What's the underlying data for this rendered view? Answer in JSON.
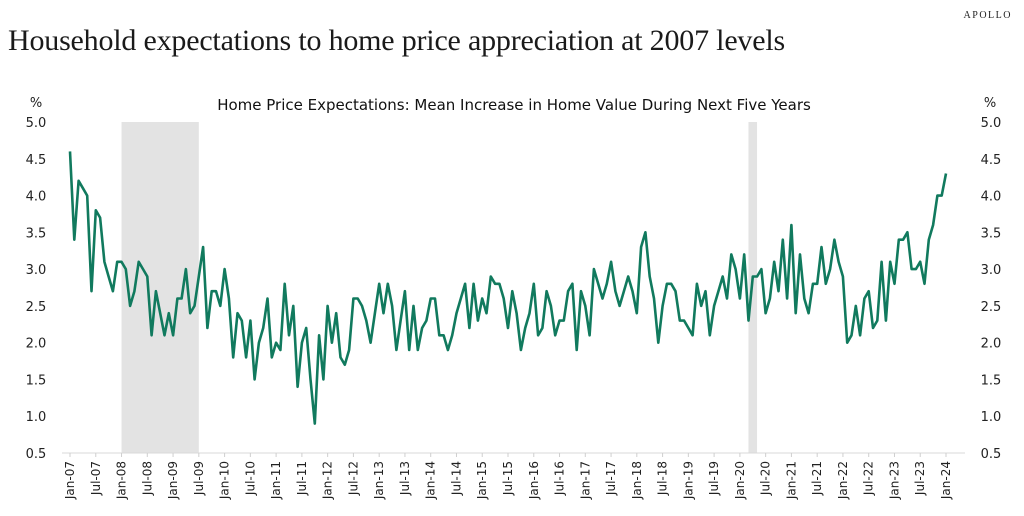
{
  "headline": "Household expectations to home price appreciation at 2007 levels",
  "brand": "APOLLO",
  "chart_data": {
    "type": "line",
    "title": "Home Price Expectations: Mean Increase in Home Value During Next Five Years",
    "ylabel_left": "%",
    "ylabel_right": "%",
    "xlabel": "",
    "ylim": [
      0.5,
      5.0
    ],
    "yticks": [
      "5.0",
      "4.5",
      "4.0",
      "3.5",
      "3.0",
      "2.5",
      "2.0",
      "1.5",
      "1.0",
      "0.5"
    ],
    "ytick_values": [
      5.0,
      4.5,
      4.0,
      3.5,
      3.0,
      2.5,
      2.0,
      1.5,
      1.0,
      0.5
    ],
    "x_start": "Jan-07",
    "x_frequency": "monthly",
    "xticks": [
      "Jan-07",
      "Jul-07",
      "Jan-08",
      "Jul-08",
      "Jan-09",
      "Jul-09",
      "Jan-10",
      "Jul-10",
      "Jan-11",
      "Jul-11",
      "Jan-12",
      "Jul-12",
      "Jan-13",
      "Jul-13",
      "Jan-14",
      "Jul-14",
      "Jan-15",
      "Jul-15",
      "Jan-16",
      "Jul-16",
      "Jan-17",
      "Jul-17",
      "Jan-18",
      "Jul-18",
      "Jan-19",
      "Jul-19",
      "Jan-20",
      "Jul-20",
      "Jan-21",
      "Jul-21",
      "Jan-22",
      "Jul-22",
      "Jan-23",
      "Jul-23",
      "Jan-24"
    ],
    "shaded_periods": [
      {
        "label": "recession",
        "start_month_index": 12,
        "end_month_index": 30
      },
      {
        "label": "recession",
        "start_month_index": 158,
        "end_month_index": 160
      }
    ],
    "grid": false,
    "legend": "none",
    "series": [
      {
        "name": "Mean expected increase in home value, next 5 years",
        "color": "#117a5e",
        "values": [
          4.6,
          3.4,
          4.2,
          4.1,
          4.0,
          2.7,
          3.8,
          3.7,
          3.1,
          2.9,
          2.7,
          3.1,
          3.1,
          3.0,
          2.5,
          2.7,
          3.1,
          3.0,
          2.9,
          2.1,
          2.7,
          2.4,
          2.1,
          2.4,
          2.1,
          2.6,
          2.6,
          3.0,
          2.4,
          2.5,
          2.9,
          3.3,
          2.2,
          2.7,
          2.7,
          2.5,
          3.0,
          2.6,
          1.8,
          2.4,
          2.3,
          1.8,
          2.3,
          1.5,
          2.0,
          2.2,
          2.6,
          1.8,
          2.0,
          1.9,
          2.8,
          2.1,
          2.5,
          1.4,
          2.0,
          2.2,
          1.5,
          0.9,
          2.1,
          1.5,
          2.5,
          2.0,
          2.4,
          1.8,
          1.7,
          1.9,
          2.6,
          2.6,
          2.5,
          2.3,
          2.0,
          2.4,
          2.8,
          2.4,
          2.8,
          2.5,
          1.9,
          2.3,
          2.7,
          1.9,
          2.5,
          1.9,
          2.2,
          2.3,
          2.6,
          2.6,
          2.1,
          2.1,
          1.9,
          2.1,
          2.4,
          2.6,
          2.8,
          2.2,
          2.8,
          2.3,
          2.6,
          2.4,
          2.9,
          2.8,
          2.8,
          2.6,
          2.2,
          2.7,
          2.4,
          1.9,
          2.2,
          2.4,
          2.8,
          2.1,
          2.2,
          2.7,
          2.5,
          2.1,
          2.3,
          2.3,
          2.7,
          2.8,
          1.9,
          2.7,
          2.5,
          2.1,
          3.0,
          2.8,
          2.6,
          2.8,
          3.1,
          2.7,
          2.5,
          2.7,
          2.9,
          2.7,
          2.4,
          3.3,
          3.5,
          2.9,
          2.6,
          2.0,
          2.5,
          2.8,
          2.8,
          2.7,
          2.3,
          2.3,
          2.2,
          2.1,
          2.8,
          2.5,
          2.7,
          2.1,
          2.5,
          2.7,
          2.9,
          2.6,
          3.2,
          3.0,
          2.6,
          3.2,
          2.3,
          2.9,
          2.9,
          3.0,
          2.4,
          2.6,
          3.1,
          2.7,
          3.4,
          2.6,
          3.6,
          2.4,
          3.2,
          2.6,
          2.4,
          2.8,
          2.8,
          3.3,
          2.8,
          3.0,
          3.4,
          3.1,
          2.9,
          2.0,
          2.1,
          2.5,
          2.1,
          2.6,
          2.7,
          2.2,
          2.3,
          3.1,
          2.3,
          3.1,
          2.8,
          3.4,
          3.4,
          3.5,
          3.0,
          3.0,
          3.1,
          2.8,
          3.4,
          3.6,
          4.0,
          4.0,
          4.3
        ]
      }
    ]
  }
}
